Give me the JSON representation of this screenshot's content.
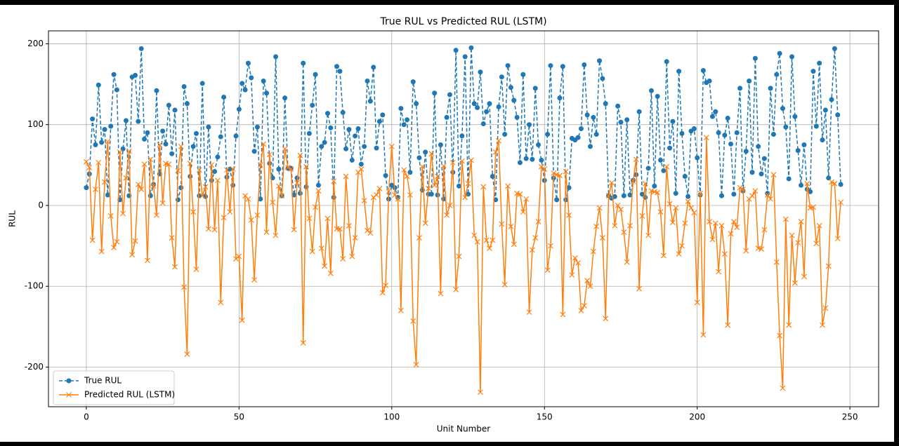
{
  "chart_data": {
    "type": "line",
    "title": "True RUL vs Predicted RUL (LSTM)",
    "x_label": "Unit Number",
    "y_label": "RUL",
    "x": [
      0,
      1,
      2,
      3,
      4,
      5,
      6,
      7,
      8,
      9,
      10,
      11,
      12,
      13,
      14,
      15,
      16,
      17,
      18,
      19,
      20,
      21,
      22,
      23,
      24,
      25,
      26,
      27,
      28,
      29,
      30,
      31,
      32,
      33,
      34,
      35,
      36,
      37,
      38,
      39,
      40,
      41,
      42,
      43,
      44,
      45,
      46,
      47,
      48,
      49,
      50,
      51,
      52,
      53,
      54,
      55,
      56,
      57,
      58,
      59,
      60,
      61,
      62,
      63,
      64,
      65,
      66,
      67,
      68,
      69,
      70,
      71,
      72,
      73,
      74,
      75,
      76,
      77,
      78,
      79,
      80,
      81,
      82,
      83,
      84,
      85,
      86,
      87,
      88,
      89,
      90,
      91,
      92,
      93,
      94,
      95,
      96,
      97,
      98,
      99,
      100,
      101,
      102,
      103,
      104,
      105,
      106,
      107,
      108,
      109,
      110,
      111,
      112,
      113,
      114,
      115,
      116,
      117,
      118,
      119,
      120,
      121,
      122,
      123,
      124,
      125,
      126,
      127,
      128,
      129,
      130,
      131,
      132,
      133,
      134,
      135,
      136,
      137,
      138,
      139,
      140,
      141,
      142,
      143,
      144,
      145,
      146,
      147,
      148,
      149,
      150,
      151,
      152,
      153,
      154,
      155,
      156,
      157,
      158,
      159,
      160,
      161,
      162,
      163,
      164,
      165,
      166,
      167,
      168,
      169,
      170,
      171,
      172,
      173,
      174,
      175,
      176,
      177,
      178,
      179,
      180,
      181,
      182,
      183,
      184,
      185,
      186,
      187,
      188,
      189,
      190,
      191,
      192,
      193,
      194,
      195,
      196,
      197,
      198,
      199,
      200,
      201,
      202,
      203,
      204,
      205,
      206,
      207,
      208,
      209,
      210,
      211,
      212,
      213,
      214,
      215,
      216,
      217,
      218,
      219,
      220,
      221,
      222,
      223,
      224,
      225,
      226,
      227,
      228,
      229,
      230,
      231,
      232,
      233,
      234,
      235,
      236,
      237,
      238,
      239,
      240,
      241,
      242,
      243,
      244,
      245,
      246,
      247
    ],
    "series": [
      {
        "name": "True RUL",
        "color": "#1f77b4",
        "linestyle": "dashed",
        "marker": "o",
        "values": [
          22,
          39,
          107,
          75,
          149,
          78,
          94,
          13,
          98,
          162,
          143,
          7,
          70,
          105,
          12,
          159,
          161,
          104,
          194,
          82,
          90,
          12,
          26,
          142,
          39,
          92,
          76,
          124,
          64,
          118,
          7,
          22,
          147,
          126,
          36,
          73,
          89,
          12,
          151,
          11,
          97,
          31,
          42,
          60,
          85,
          134,
          35,
          45,
          25,
          86,
          119,
          151,
          143,
          176,
          158,
          67,
          97,
          8,
          154,
          139,
          52,
          34,
          184,
          45,
          12,
          133,
          46,
          46,
          13,
          34,
          15,
          176,
          23,
          89,
          124,
          162,
          25,
          73,
          78,
          114,
          96,
          10,
          172,
          166,
          115,
          70,
          94,
          56,
          86,
          95,
          51,
          73,
          154,
          129,
          171,
          71,
          104,
          112,
          37,
          8,
          25,
          22,
          10,
          120,
          100,
          106,
          41,
          153,
          126,
          59,
          19,
          66,
          14,
          14,
          139,
          13,
          75,
          8,
          109,
          137,
          41,
          192,
          24,
          86,
          184,
          14,
          195,
          126,
          121,
          165,
          101,
          116,
          126,
          36,
          7,
          122,
          159,
          88,
          173,
          146,
          130,
          109,
          53,
          162,
          58,
          100,
          57,
          145,
          75,
          56,
          31,
          88,
          173,
          34,
          7,
          133,
          172,
          7,
          22,
          83,
          81,
          84,
          95,
          174,
          112,
          73,
          109,
          88,
          179,
          157,
          126,
          12,
          9,
          11,
          123,
          103,
          12,
          106,
          13,
          31,
          38,
          116,
          14,
          10,
          46,
          142,
          24,
          135,
          56,
          43,
          178,
          71,
          104,
          15,
          166,
          89,
          36,
          11,
          92,
          95,
          59,
          13,
          167,
          152,
          154,
          110,
          116,
          90,
          12,
          87,
          108,
          76,
          14,
          90,
          145,
          18,
          67,
          154,
          41,
          182,
          73,
          39,
          58,
          15,
          145,
          88,
          162,
          188,
          120,
          97,
          33,
          184,
          110,
          68,
          25,
          75,
          20,
          17,
          166,
          98,
          176,
          81,
          118,
          34,
          131,
          194,
          112,
          26
        ]
      },
      {
        "name": "Predicted RUL (LSTM)",
        "color": "#ff7f0e",
        "linestyle": "solid",
        "marker": "x",
        "values": [
          54,
          47,
          -43,
          20,
          53,
          -57,
          29,
          79,
          -13,
          -52,
          -45,
          66,
          -10,
          34,
          67,
          -61,
          -44,
          26,
          20,
          51,
          -68,
          57,
          24,
          -12,
          75,
          3,
          52,
          51,
          -40,
          -76,
          43,
          73,
          -101,
          -184,
          52,
          -8,
          -79,
          44,
          12,
          23,
          -29,
          50,
          -30,
          31,
          -120,
          -15,
          44,
          -8,
          45,
          -66,
          -63,
          -142,
          12,
          8,
          -18,
          -92,
          -12,
          50,
          76,
          -33,
          63,
          4,
          -37,
          24,
          12,
          70,
          47,
          45,
          -30,
          28,
          62,
          -170,
          48,
          -16,
          -57,
          -2,
          18,
          -53,
          -75,
          -16,
          -84,
          30,
          -29,
          -29,
          -66,
          36,
          -25,
          -63,
          -40,
          41,
          45,
          6,
          -31,
          -34,
          10,
          13,
          21,
          -108,
          -99,
          17,
          73,
          13,
          8,
          -130,
          44,
          36,
          13,
          -143,
          -197,
          -40,
          48,
          -22,
          21,
          64,
          25,
          36,
          -109,
          49,
          -12,
          0,
          53,
          -104,
          -63,
          55,
          10,
          27,
          56,
          -37,
          -45,
          -231,
          23,
          -43,
          -53,
          -43,
          66,
          80,
          -23,
          -98,
          24,
          -26,
          -48,
          15,
          14,
          -8,
          8,
          -132,
          -55,
          -40,
          -20,
          48,
          45,
          -80,
          -50,
          40,
          38,
          37,
          -135,
          42,
          -12,
          -86,
          -65,
          -71,
          -130,
          -124,
          -93,
          -100,
          -57,
          -26,
          -3,
          -40,
          -140,
          12,
          28,
          -25,
          0,
          -5,
          -33,
          -70,
          -25,
          30,
          57,
          -103,
          -13,
          27,
          -37,
          18,
          17,
          16,
          -8,
          -62,
          48,
          2,
          -21,
          -3,
          -60,
          -50,
          -22,
          5,
          -3,
          -9,
          -120,
          15,
          -160,
          84,
          -20,
          -42,
          -22,
          -82,
          -25,
          -60,
          -148,
          -35,
          -20,
          -27,
          22,
          20,
          -56,
          8,
          12,
          18,
          -53,
          -54,
          -30,
          13,
          8,
          38,
          -70,
          -161,
          -226,
          -17,
          -148,
          -37,
          -96,
          -46,
          -20,
          -88,
          27,
          -3,
          -2,
          -47,
          -25,
          -148,
          -127,
          -75,
          29,
          27,
          -41,
          4
        ]
      }
    ],
    "xlim": [
      -12.4,
      259.4
    ],
    "ylim": [
      -249,
      216
    ],
    "xticks": [
      0,
      50,
      100,
      150,
      200,
      250
    ],
    "yticks": [
      -200,
      -100,
      0,
      100,
      200
    ],
    "grid": true,
    "legend": "lower left"
  }
}
